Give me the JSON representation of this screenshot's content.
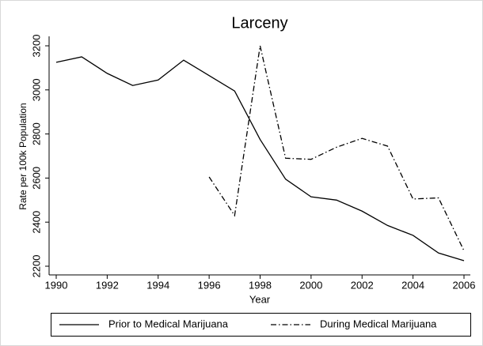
{
  "chart_data": {
    "type": "line",
    "title": "Larceny",
    "x_label": "Year",
    "y_label": "Rate per 100k Population",
    "x": [
      1990,
      1991,
      1992,
      1993,
      1994,
      1995,
      1996,
      1997,
      1998,
      1999,
      2000,
      2001,
      2002,
      2003,
      2004,
      2005,
      2006
    ],
    "series": [
      {
        "name": "Prior to Medical Marijuana",
        "color": "#000000",
        "dash": "solid",
        "values": [
          3125,
          3150,
          3075,
          3020,
          3045,
          3135,
          3065,
          2995,
          2775,
          2595,
          2515,
          2500,
          2450,
          2385,
          2340,
          2260,
          2225
        ]
      },
      {
        "name": "During Medical Marijuana",
        "color": "#000000",
        "dash": "dashdot",
        "values": [
          null,
          null,
          null,
          null,
          null,
          null,
          2605,
          2430,
          3200,
          2690,
          2685,
          2740,
          2780,
          2745,
          2505,
          2510,
          2270
        ]
      }
    ],
    "xlim": [
      1990,
      2006
    ],
    "xticks": [
      1990,
      1992,
      1994,
      1996,
      1998,
      2000,
      2002,
      2004,
      2006
    ],
    "ylim": [
      2200,
      3200
    ],
    "yticks": [
      2200,
      2400,
      2600,
      2800,
      3000,
      3200
    ],
    "grid": false,
    "legend": "bottom"
  }
}
